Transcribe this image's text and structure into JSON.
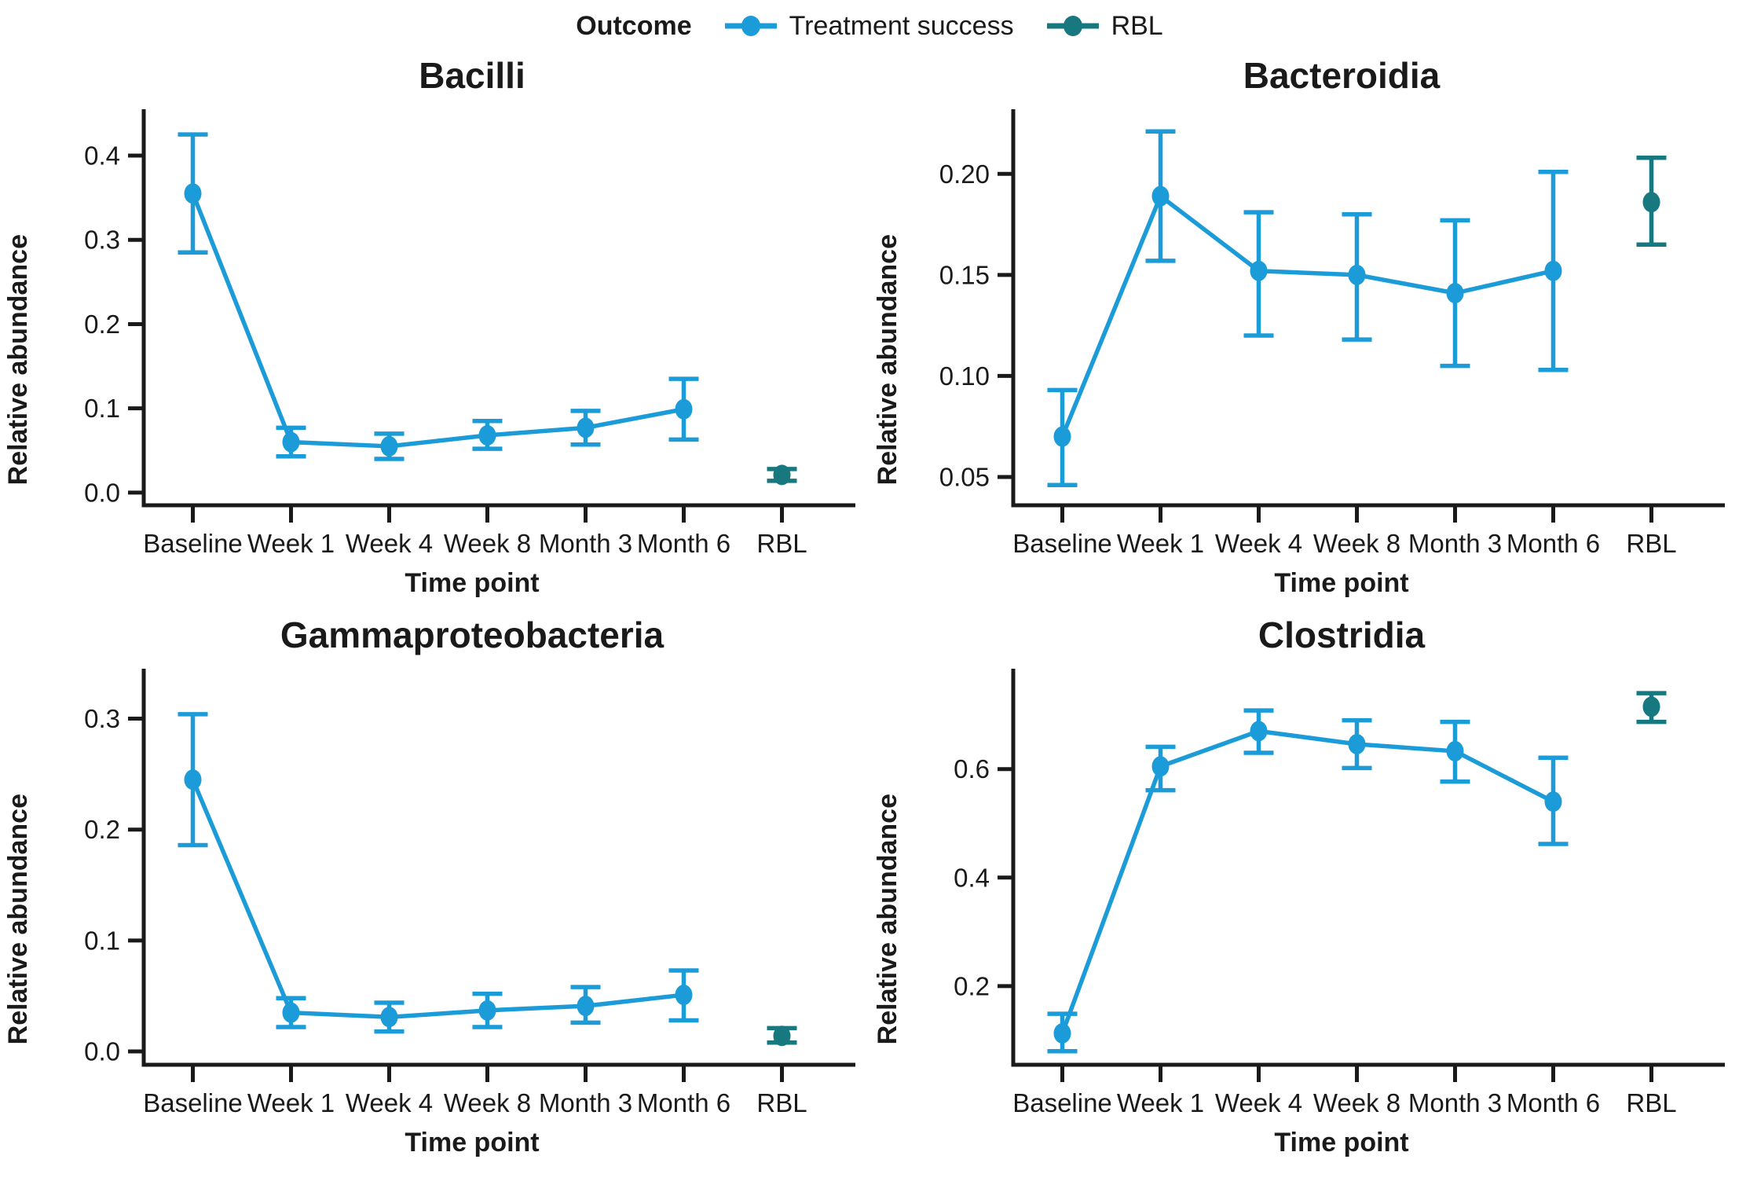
{
  "figure": {
    "background": "#ffffff"
  },
  "legend": {
    "title": "Outcome",
    "items": [
      {
        "label": "Treatment success",
        "color": "#1b9bd8"
      },
      {
        "label": "RBL",
        "color": "#17787f"
      }
    ]
  },
  "colors": {
    "treatment_success": "#1b9bd8",
    "rbl": "#17787f",
    "axis": "#1a1a1a",
    "text": "#1a1a1a"
  },
  "chart_data": [
    {
      "type": "line",
      "title": "Bacilli",
      "ylabel": "Relative abundance",
      "xlabel": "Time point",
      "categories": [
        "Baseline",
        "Week 1",
        "Week 4",
        "Week 8",
        "Month 3",
        "Month 6",
        "RBL"
      ],
      "yticks": [
        0.0,
        0.1,
        0.2,
        0.3,
        0.4
      ],
      "ytick_labels": [
        "0.0",
        "0.1",
        "0.2",
        "0.3",
        "0.4"
      ],
      "ylim": [
        -0.015,
        0.455
      ],
      "grid": false,
      "legend_position": "top-center-shared",
      "series": [
        {
          "name": "Treatment success",
          "color": "#1b9bd8",
          "connected": true,
          "values": [
            0.355,
            0.06,
            0.055,
            0.068,
            0.077,
            0.099,
            null
          ],
          "err_lo": [
            0.285,
            0.043,
            0.04,
            0.052,
            0.057,
            0.063,
            null
          ],
          "err_hi": [
            0.425,
            0.077,
            0.07,
            0.085,
            0.097,
            0.135,
            null
          ]
        },
        {
          "name": "RBL",
          "color": "#17787f",
          "connected": false,
          "values": [
            null,
            null,
            null,
            null,
            null,
            null,
            0.021
          ],
          "err_lo": [
            null,
            null,
            null,
            null,
            null,
            null,
            0.014
          ],
          "err_hi": [
            null,
            null,
            null,
            null,
            null,
            null,
            0.028
          ]
        }
      ]
    },
    {
      "type": "line",
      "title": "Bacteroidia",
      "ylabel": "Relative abundance",
      "xlabel": "Time point",
      "categories": [
        "Baseline",
        "Week 1",
        "Week 4",
        "Week 8",
        "Month 3",
        "Month 6",
        "RBL"
      ],
      "yticks": [
        0.05,
        0.1,
        0.15,
        0.2
      ],
      "ytick_labels": [
        "0.05",
        "0.10",
        "0.15",
        "0.20"
      ],
      "ylim": [
        0.036,
        0.232
      ],
      "grid": false,
      "legend_position": "top-center-shared",
      "series": [
        {
          "name": "Treatment success",
          "color": "#1b9bd8",
          "connected": true,
          "values": [
            0.07,
            0.189,
            0.152,
            0.15,
            0.141,
            0.152,
            null
          ],
          "err_lo": [
            0.046,
            0.157,
            0.12,
            0.118,
            0.105,
            0.103,
            null
          ],
          "err_hi": [
            0.093,
            0.221,
            0.181,
            0.18,
            0.177,
            0.201,
            null
          ]
        },
        {
          "name": "RBL",
          "color": "#17787f",
          "connected": false,
          "values": [
            null,
            null,
            null,
            null,
            null,
            null,
            0.186
          ],
          "err_lo": [
            null,
            null,
            null,
            null,
            null,
            null,
            0.165
          ],
          "err_hi": [
            null,
            null,
            null,
            null,
            null,
            null,
            0.208
          ]
        }
      ]
    },
    {
      "type": "line",
      "title": "Gammaproteobacteria",
      "ylabel": "Relative abundance",
      "xlabel": "Time point",
      "categories": [
        "Baseline",
        "Week 1",
        "Week 4",
        "Week 8",
        "Month 3",
        "Month 6",
        "RBL"
      ],
      "yticks": [
        0.0,
        0.1,
        0.2,
        0.3
      ],
      "ytick_labels": [
        "0.0",
        "0.1",
        "0.2",
        "0.3"
      ],
      "ylim": [
        -0.012,
        0.345
      ],
      "grid": false,
      "legend_position": "top-center-shared",
      "series": [
        {
          "name": "Treatment success",
          "color": "#1b9bd8",
          "connected": true,
          "values": [
            0.245,
            0.035,
            0.031,
            0.037,
            0.041,
            0.051,
            null
          ],
          "err_lo": [
            0.186,
            0.022,
            0.018,
            0.022,
            0.026,
            0.028,
            null
          ],
          "err_hi": [
            0.304,
            0.048,
            0.044,
            0.052,
            0.058,
            0.073,
            null
          ]
        },
        {
          "name": "RBL",
          "color": "#17787f",
          "connected": false,
          "values": [
            null,
            null,
            null,
            null,
            null,
            null,
            0.014
          ],
          "err_lo": [
            null,
            null,
            null,
            null,
            null,
            null,
            0.008
          ],
          "err_hi": [
            null,
            null,
            null,
            null,
            null,
            null,
            0.021
          ]
        }
      ]
    },
    {
      "type": "line",
      "title": "Clostridia",
      "ylabel": "Relative abundance",
      "xlabel": "Time point",
      "categories": [
        "Baseline",
        "Week 1",
        "Week 4",
        "Week 8",
        "Month 3",
        "Month 6",
        "RBL"
      ],
      "yticks": [
        0.2,
        0.4,
        0.6
      ],
      "ytick_labels": [
        "0.2",
        "0.4",
        "0.6"
      ],
      "ylim": [
        0.055,
        0.785
      ],
      "grid": false,
      "legend_position": "top-center-shared",
      "series": [
        {
          "name": "Treatment success",
          "color": "#1b9bd8",
          "connected": true,
          "values": [
            0.113,
            0.605,
            0.67,
            0.646,
            0.633,
            0.54,
            null
          ],
          "err_lo": [
            0.08,
            0.561,
            0.63,
            0.602,
            0.577,
            0.462,
            null
          ],
          "err_hi": [
            0.149,
            0.641,
            0.708,
            0.69,
            0.687,
            0.621,
            null
          ]
        },
        {
          "name": "RBL",
          "color": "#17787f",
          "connected": false,
          "values": [
            null,
            null,
            null,
            null,
            null,
            null,
            0.715
          ],
          "err_lo": [
            null,
            null,
            null,
            null,
            null,
            null,
            0.687
          ],
          "err_hi": [
            null,
            null,
            null,
            null,
            null,
            null,
            0.74
          ]
        }
      ]
    }
  ]
}
